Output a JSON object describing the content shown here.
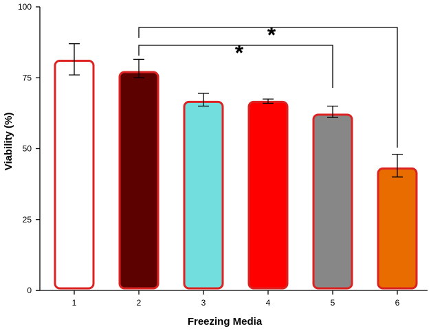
{
  "chart_data": {
    "type": "bar",
    "categories": [
      "1",
      "2",
      "3",
      "4",
      "5",
      "6"
    ],
    "values": [
      81,
      77,
      66.5,
      66.5,
      62,
      43
    ],
    "error_bars": [
      {
        "low": 76,
        "high": 87
      },
      {
        "low": 75,
        "high": 81.5
      },
      {
        "low": 65,
        "high": 69.5
      },
      {
        "low": 66,
        "high": 67.5
      },
      {
        "low": 61,
        "high": 65
      },
      {
        "low": 40,
        "high": 48
      }
    ],
    "bar_fill_colors": [
      "#ffffff",
      "#5c0000",
      "#72dede",
      "#ff0000",
      "#878787",
      "#e86c00"
    ],
    "bar_stroke_color": "#dd2222",
    "xlabel": "Freezing Media",
    "ylabel": "Viability (%)",
    "ylim": [
      0,
      100
    ],
    "yticks": [
      0,
      25,
      50,
      75,
      100
    ],
    "grid": false,
    "significance": [
      {
        "from": "2",
        "to": "6",
        "label": "*"
      },
      {
        "from": "2",
        "to": "5",
        "label": "*"
      }
    ]
  }
}
